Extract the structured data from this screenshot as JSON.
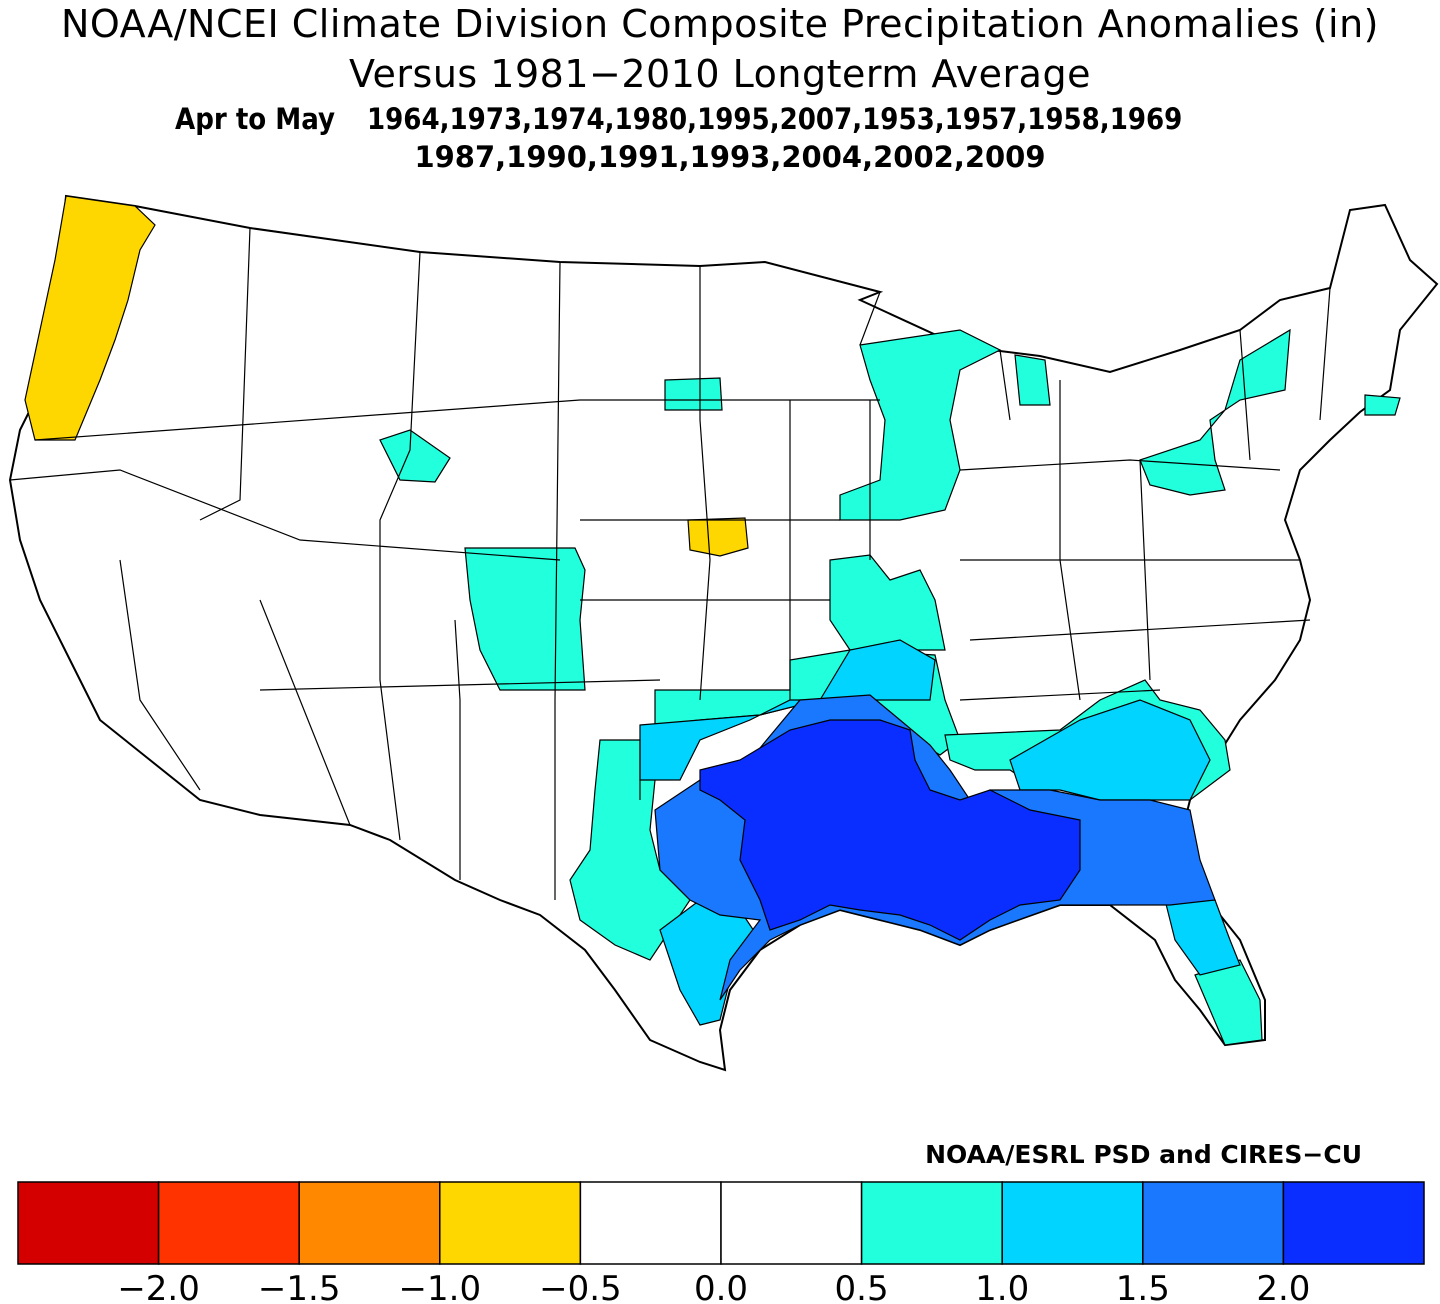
{
  "title": "NOAA/NCEI Climate Division Composite Precipitation Anomalies (in)",
  "subtitle": "Versus 1981−2010 Longterm Average",
  "period": "Apr to May",
  "years_line1": "1964,1973,1974,1980,1995,2007,1953,1957,1958,1969",
  "years_line2": "1987,1990,1991,1993,2004,2002,2009",
  "credit": "NOAA/ESRL PSD and CIRES−CU",
  "colorbar": {
    "colors": [
      "#d40000",
      "#ff3300",
      "#ff8800",
      "#ffd700",
      "#ffffff",
      "#ffffff",
      "#22ffdd",
      "#00d4ff",
      "#1a78ff",
      "#0a2eff"
    ],
    "tick_labels": [
      "−2.0",
      "−1.5",
      "−1.0",
      "−0.5",
      "0.0",
      "0.5",
      "1.0",
      "1.5",
      "2.0"
    ]
  },
  "legend_colors": {
    "dry_-1.0_to_-0.5": "#ffd700",
    "wet_0.5_to_1.0": "#22ffdd",
    "wet_1.0_to_1.5": "#00d4ff",
    "wet_1.5_to_2.0": "#1a78ff",
    "wet_above_2.0": "#0a2eff"
  }
}
